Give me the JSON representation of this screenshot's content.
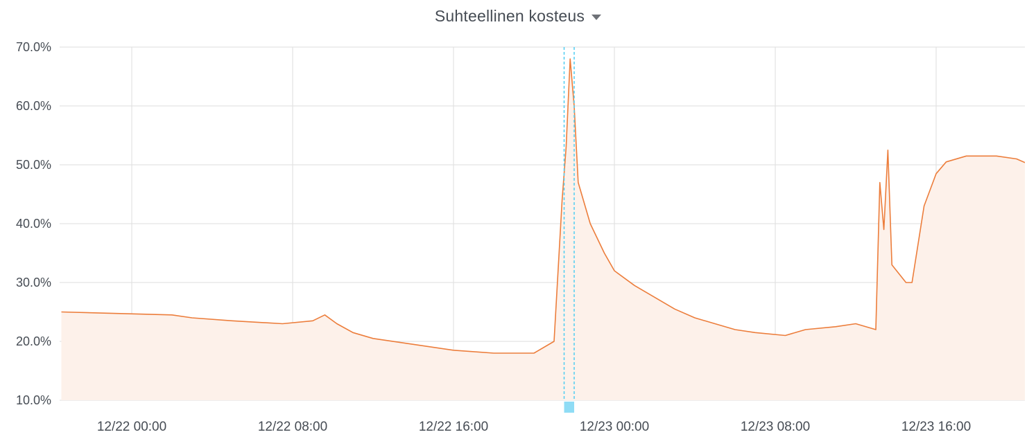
{
  "panel": {
    "title": "Suhteellinen kosteus",
    "menu_icon": "caret-down-icon"
  },
  "colors": {
    "line": "#ec7d3b",
    "fill": "#fdf1ea",
    "grid": "#dedede",
    "annotation": "#4fcdf2"
  },
  "chart_data": {
    "type": "area",
    "title": "Suhteellinen kosteus",
    "xlabel": "",
    "ylabel": "",
    "x_unit": "hours since 12/21 21:12",
    "ylim": [
      10,
      70
    ],
    "y_ticks": [
      {
        "value": 10,
        "label": "10.0%"
      },
      {
        "value": 20,
        "label": "20.0%"
      },
      {
        "value": 30,
        "label": "30.0%"
      },
      {
        "value": 40,
        "label": "40.0%"
      },
      {
        "value": 50,
        "label": "50.0%"
      },
      {
        "value": 60,
        "label": "60.0%"
      },
      {
        "value": 70,
        "label": "70.0%"
      }
    ],
    "x_ticks": [
      {
        "label": "12/22 00:00",
        "time": "2023-12-22T00:00"
      },
      {
        "label": "12/22 08:00",
        "time": "2023-12-22T08:00"
      },
      {
        "label": "12/22 16:00",
        "time": "2023-12-22T16:00"
      },
      {
        "label": "12/23 00:00",
        "time": "2023-12-23T00:00"
      },
      {
        "label": "12/23 08:00",
        "time": "2023-12-23T08:00"
      },
      {
        "label": "12/23 16:00",
        "time": "2023-12-23T16:00"
      }
    ],
    "grid": true,
    "annotation_region": {
      "start": "2023-12-22T21:30",
      "end": "2023-12-22T22:00"
    },
    "series": [
      {
        "name": "Suhteellinen kosteus",
        "points": [
          [
            "2023-12-21T20:30",
            25.0
          ],
          [
            "2023-12-22T02:00",
            24.5
          ],
          [
            "2023-12-22T03:00",
            24.0
          ],
          [
            "2023-12-22T05:00",
            23.5
          ],
          [
            "2023-12-22T07:30",
            23.0
          ],
          [
            "2023-12-22T09:00",
            23.5
          ],
          [
            "2023-12-22T09:36",
            24.5
          ],
          [
            "2023-12-22T10:12",
            23.0
          ],
          [
            "2023-12-22T11:00",
            21.5
          ],
          [
            "2023-12-22T12:00",
            20.5
          ],
          [
            "2023-12-22T14:00",
            19.5
          ],
          [
            "2023-12-22T16:00",
            18.5
          ],
          [
            "2023-12-22T18:00",
            18.0
          ],
          [
            "2023-12-22T20:00",
            18.0
          ],
          [
            "2023-12-22T21:00",
            20.0
          ],
          [
            "2023-12-22T21:24",
            44.0
          ],
          [
            "2023-12-22T21:36",
            53.0
          ],
          [
            "2023-12-22T21:48",
            68.0
          ],
          [
            "2023-12-22T22:00",
            60.0
          ],
          [
            "2023-12-22T22:12",
            47.0
          ],
          [
            "2023-12-22T22:48",
            40.0
          ],
          [
            "2023-12-22T23:30",
            35.0
          ],
          [
            "2023-12-23T00:00",
            32.0
          ],
          [
            "2023-12-23T01:00",
            29.5
          ],
          [
            "2023-12-23T02:00",
            27.5
          ],
          [
            "2023-12-23T03:00",
            25.5
          ],
          [
            "2023-12-23T04:00",
            24.0
          ],
          [
            "2023-12-23T05:00",
            23.0
          ],
          [
            "2023-12-23T06:00",
            22.0
          ],
          [
            "2023-12-23T07:00",
            21.5
          ],
          [
            "2023-12-23T08:30",
            21.0
          ],
          [
            "2023-12-23T09:30",
            22.0
          ],
          [
            "2023-12-23T11:00",
            22.5
          ],
          [
            "2023-12-23T12:00",
            23.0
          ],
          [
            "2023-12-23T13:00",
            22.0
          ],
          [
            "2023-12-23T13:12",
            47.0
          ],
          [
            "2023-12-23T13:24",
            39.0
          ],
          [
            "2023-12-23T13:36",
            52.5
          ],
          [
            "2023-12-23T13:48",
            33.0
          ],
          [
            "2023-12-23T14:30",
            30.0
          ],
          [
            "2023-12-23T14:48",
            30.0
          ],
          [
            "2023-12-23T15:24",
            43.0
          ],
          [
            "2023-12-23T16:00",
            48.5
          ],
          [
            "2023-12-23T16:30",
            50.5
          ],
          [
            "2023-12-23T17:30",
            51.5
          ],
          [
            "2023-12-23T19:00",
            51.5
          ],
          [
            "2023-12-23T20:00",
            51.0
          ],
          [
            "2023-12-23T21:00",
            49.5
          ],
          [
            "2023-12-23T21:30",
            48.0
          ]
        ]
      }
    ]
  }
}
